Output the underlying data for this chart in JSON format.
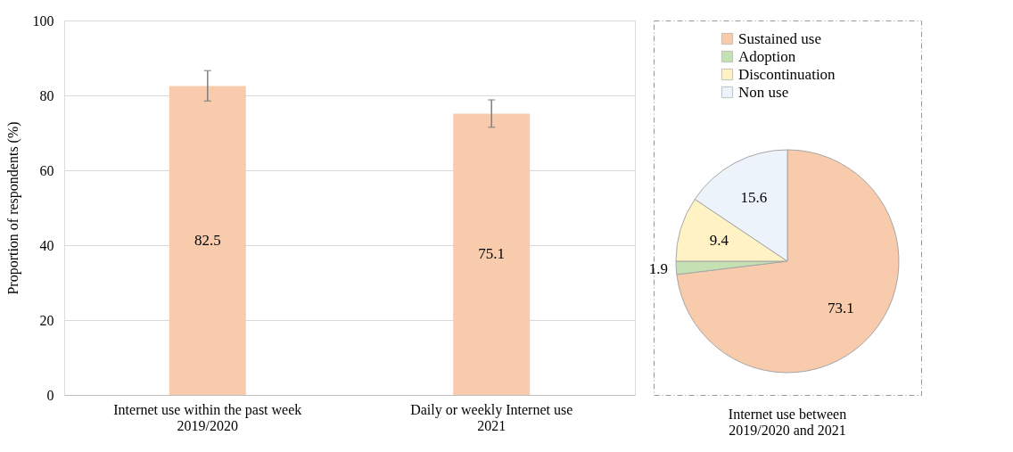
{
  "chart_data": [
    {
      "type": "bar",
      "ylabel": "Proportion of respondents (%)",
      "categories": [
        "Internet use within the past week\n2019/2020",
        "Daily or weekly Internet use\n2021"
      ],
      "values": [
        82.5,
        75.1
      ],
      "color": "#f7cbac",
      "errors": [
        [
          78.5,
          86.6
        ],
        [
          71.5,
          78.8
        ]
      ],
      "ylim": [
        0,
        100
      ],
      "yticks": [
        0,
        20,
        40,
        60,
        80,
        100
      ],
      "grid": "y",
      "data_labels": true
    },
    {
      "type": "pie",
      "title": "Internet use between\n2019/2020 and 2021",
      "categories": [
        "Sustained use",
        "Adoption",
        "Discontinuation",
        "Non use"
      ],
      "values": [
        73.1,
        1.9,
        9.4,
        15.6
      ],
      "colors": [
        "#f7cbac",
        "#c5e0b3",
        "#fff2c4",
        "#edf3fb"
      ],
      "legend": "top",
      "data_labels": true
    }
  ]
}
